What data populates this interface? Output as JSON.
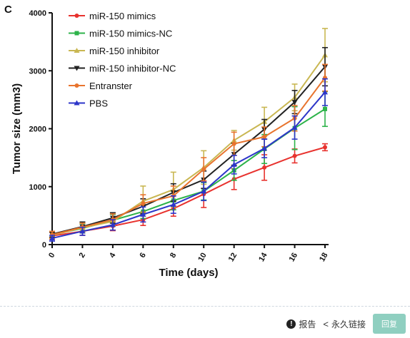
{
  "panel_letter": "C",
  "chart_data": {
    "type": "line",
    "ylabel": "Tumor size (mm3)",
    "xlabel": "Time (days)",
    "x": [
      0,
      2,
      4,
      6,
      8,
      10,
      12,
      14,
      16,
      18
    ],
    "xlim": [
      0,
      18
    ],
    "ylim": [
      0,
      4000
    ],
    "yticks": [
      0,
      1000,
      2000,
      3000,
      4000
    ],
    "legend_position": "top-left",
    "series": [
      {
        "name": "miR-150 mimics",
        "color": "#e8322e",
        "marker": "circle",
        "values": [
          150,
          230,
          320,
          430,
          620,
          870,
          1130,
          1330,
          1530,
          1680
        ],
        "errors": [
          60,
          70,
          80,
          100,
          130,
          230,
          180,
          220,
          120,
          60
        ]
      },
      {
        "name": "miR-150 mimics-NC",
        "color": "#2db34a",
        "marker": "square",
        "values": [
          170,
          280,
          420,
          570,
          760,
          920,
          1280,
          1650,
          2010,
          2340
        ],
        "errors": [
          50,
          80,
          100,
          120,
          160,
          150,
          170,
          250,
          370,
          300
        ]
      },
      {
        "name": "miR-150 inhibitor",
        "color": "#c9b752",
        "marker": "triangle",
        "values": [
          160,
          290,
          400,
          750,
          950,
          1330,
          1800,
          2120,
          2540,
          3270
        ],
        "errors": [
          60,
          80,
          150,
          260,
          300,
          290,
          170,
          250,
          230,
          460
        ]
      },
      {
        "name": "miR-150 inhibitor-NC",
        "color": "#222222",
        "marker": "triangle-down",
        "values": [
          180,
          310,
          460,
          660,
          900,
          1120,
          1560,
          1990,
          2460,
          3070
        ],
        "errors": [
          50,
          80,
          90,
          130,
          150,
          150,
          190,
          170,
          200,
          330
        ]
      },
      {
        "name": "Entranster",
        "color": "#e8742e",
        "marker": "circle",
        "values": [
          170,
          300,
          430,
          710,
          840,
          1300,
          1740,
          1860,
          2180,
          2880
        ],
        "errors": [
          60,
          70,
          100,
          150,
          170,
          200,
          200,
          170,
          220,
          230
        ]
      },
      {
        "name": "PBS",
        "color": "#2d36c9",
        "marker": "triangle",
        "values": [
          110,
          230,
          340,
          520,
          690,
          920,
          1380,
          1660,
          2020,
          2630
        ],
        "errors": [
          50,
          70,
          90,
          130,
          150,
          160,
          160,
          160,
          200,
          230
        ]
      }
    ]
  },
  "footer": {
    "report_label": "报告",
    "permalink_label": "永久链接",
    "reply_label": "回复"
  }
}
